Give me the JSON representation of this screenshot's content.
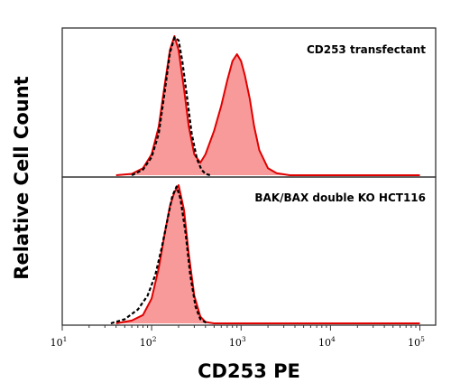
{
  "chart_data": {
    "type": "area",
    "ylabel": "Relative Cell Count",
    "xlabel": "CD253 PE",
    "xscale": "log",
    "xlim": [
      10,
      150000
    ],
    "x_ticks": [
      {
        "base": "10",
        "exp": "1",
        "value": 10
      },
      {
        "base": "10",
        "exp": "2",
        "value": 100
      },
      {
        "base": "10",
        "exp": "3",
        "value": 1000
      },
      {
        "base": "10",
        "exp": "4",
        "value": 10000
      },
      {
        "base": "10",
        "exp": "5",
        "value": 100000
      }
    ],
    "colors": {
      "sample_line": "#e00000",
      "sample_fill": "#f99a9a",
      "control_line": "#000000"
    },
    "panels": [
      {
        "label": "CD253 transfectant",
        "ylim": [
          0,
          1
        ],
        "sample": {
          "x": [
            40,
            60,
            80,
            100,
            120,
            140,
            160,
            180,
            200,
            230,
            260,
            300,
            350,
            400,
            500,
            600,
            700,
            800,
            900,
            1000,
            1100,
            1250,
            1400,
            1600,
            2000,
            2500,
            3500,
            6000,
            10000,
            30000,
            100000
          ],
          "y": [
            0,
            0.01,
            0.05,
            0.15,
            0.35,
            0.65,
            0.9,
            1.0,
            0.9,
            0.62,
            0.35,
            0.15,
            0.09,
            0.15,
            0.32,
            0.5,
            0.68,
            0.82,
            0.87,
            0.82,
            0.72,
            0.55,
            0.35,
            0.18,
            0.05,
            0.015,
            0,
            0,
            0,
            0,
            0
          ]
        },
        "control": {
          "x": [
            60,
            80,
            100,
            120,
            140,
            160,
            180,
            200,
            220,
            250,
            280,
            320,
            360,
            400,
            450
          ],
          "y": [
            0,
            0.04,
            0.13,
            0.3,
            0.6,
            0.88,
            0.99,
            0.97,
            0.82,
            0.55,
            0.3,
            0.12,
            0.04,
            0.01,
            0
          ]
        }
      },
      {
        "label": "BAK/BAX double KO HCT116",
        "ylim": [
          0,
          1
        ],
        "sample": {
          "x": [
            40,
            60,
            80,
            100,
            120,
            140,
            160,
            180,
            200,
            230,
            260,
            300,
            350,
            400,
            500,
            700,
            1000,
            3000,
            10000,
            100000
          ],
          "y": [
            0,
            0.02,
            0.06,
            0.18,
            0.4,
            0.65,
            0.85,
            0.95,
            1.0,
            0.82,
            0.5,
            0.2,
            0.05,
            0.01,
            0,
            0,
            0,
            0,
            0,
            0
          ]
        },
        "control": {
          "x": [
            35,
            50,
            70,
            90,
            110,
            130,
            150,
            170,
            190,
            210,
            240,
            270,
            310,
            350,
            420
          ],
          "y": [
            0,
            0.03,
            0.1,
            0.2,
            0.35,
            0.55,
            0.75,
            0.92,
            0.99,
            0.9,
            0.65,
            0.35,
            0.12,
            0.03,
            0
          ]
        }
      }
    ]
  }
}
